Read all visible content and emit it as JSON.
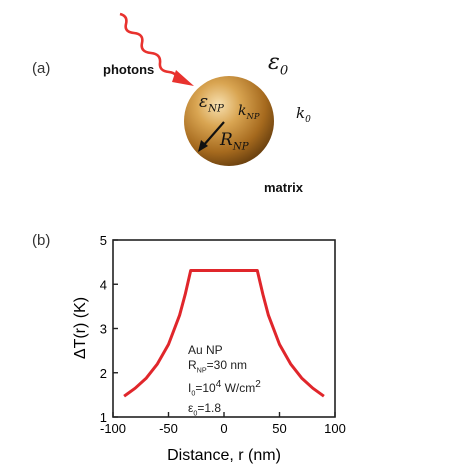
{
  "figure": {
    "panel_a": {
      "label": "(a)",
      "photons_label": "photons",
      "matrix_label": "matrix",
      "eps0_symbol": "ε",
      "eps0_sub": "0",
      "k0_symbol": "k",
      "k0_sub": "0",
      "eps_np_symbol": "ε",
      "eps_np_sub": "NP",
      "k_np_symbol": "k",
      "k_np_sub": "NP",
      "r_np_symbol": "R",
      "r_np_sub": "NP",
      "arrow_color": "#e8322e",
      "sphere_color": "#c8902e"
    },
    "panel_b": {
      "label": "(b)",
      "annotation": {
        "line1": "Au NP",
        "line2_main": "R",
        "line2_sub": "NP",
        "line2_rest": "=30 nm",
        "line3_main": "I",
        "line3_sub": "0",
        "line3_rest": "=10",
        "line3_sup": "4",
        "line3_unit": " W/cm",
        "line3_unit_sup": "2",
        "line4_main": "ε",
        "line4_sub": "0",
        "line4_rest": "=1.8"
      }
    }
  },
  "chart_data": {
    "type": "line",
    "title": "",
    "xlabel": "Distance, r (nm)",
    "ylabel": "ΔT(r) (K)",
    "xlim": [
      -100,
      100
    ],
    "ylim": [
      1,
      5
    ],
    "xticks": [
      -100,
      -50,
      0,
      50,
      100
    ],
    "yticks": [
      1,
      2,
      3,
      4,
      5
    ],
    "grid": false,
    "line_color": "#e0262b",
    "series": [
      {
        "x": [
          -90,
          -80,
          -70,
          -60,
          -50,
          -40,
          -35,
          -30,
          -20,
          -10,
          0,
          10,
          20,
          30,
          35,
          40,
          50,
          60,
          70,
          80,
          90
        ],
        "y": [
          1.47,
          1.65,
          1.88,
          2.2,
          2.64,
          3.3,
          3.77,
          4.31,
          4.31,
          4.31,
          4.31,
          4.31,
          4.31,
          4.31,
          3.77,
          3.3,
          2.64,
          2.2,
          1.88,
          1.65,
          1.47
        ]
      }
    ]
  }
}
